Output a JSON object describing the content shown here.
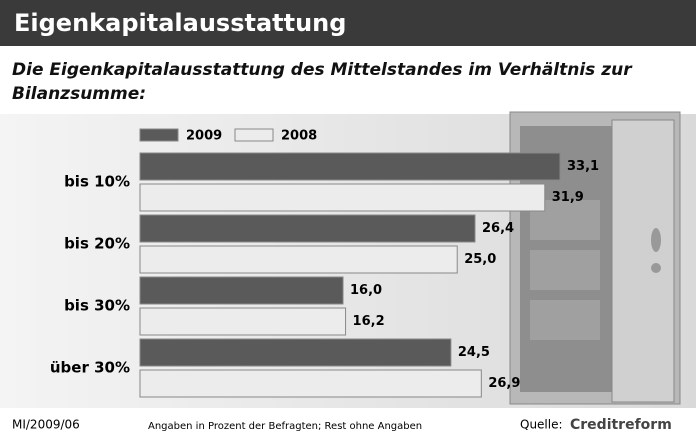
{
  "chart_data": {
    "type": "hbar",
    "title": "Eigenkapitalausstattung",
    "subtitle": "Die Eigenkapitalausstattung des Mittelstandes im Verhältnis zur Bilanzsumme:",
    "categories": [
      "bis 10%",
      "bis 20%",
      "bis 30%",
      "über 30%"
    ],
    "series": [
      {
        "name": "2009",
        "color": "#5a5a5a",
        "values": [
          33.1,
          26.4,
          16.0,
          24.5
        ],
        "value_labels": [
          "33,1",
          "26,4",
          "16,0",
          "24,5"
        ]
      },
      {
        "name": "2008",
        "color": "#ececec",
        "values": [
          31.9,
          25.0,
          16.2,
          26.9
        ],
        "value_labels": [
          "31,9",
          "25,0",
          "16,2",
          "26,9"
        ]
      }
    ],
    "footer": {
      "code": "MI/2009/06",
      "note": "Angaben in Prozent der Befragten; Rest ohne Angaben",
      "source_label": "Quelle:",
      "source": "Creditreform"
    }
  }
}
